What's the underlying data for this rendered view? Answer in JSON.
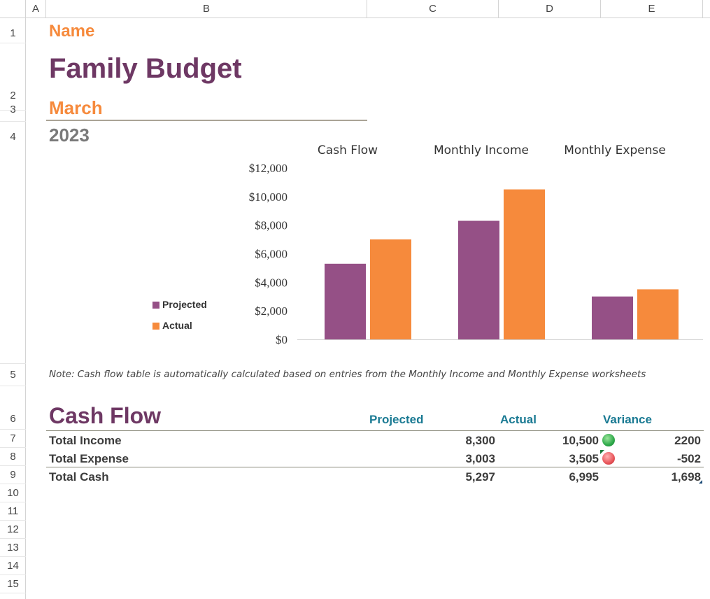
{
  "sheet": {
    "columns": [
      "A",
      "B",
      "C",
      "D",
      "E"
    ],
    "rows": [
      "1",
      "2",
      "3",
      "4",
      "5",
      "6",
      "7",
      "8",
      "9",
      "10",
      "11",
      "12",
      "13",
      "14",
      "15"
    ]
  },
  "header": {
    "name": "Name",
    "title": "Family Budget",
    "month": "March",
    "year": "2023"
  },
  "chart_data": {
    "type": "bar",
    "categories": [
      "Cash Flow",
      "Monthly Income",
      "Monthly Expense"
    ],
    "series": [
      {
        "name": "Projected",
        "values": [
          5297,
          8300,
          3003
        ],
        "color": "#955086"
      },
      {
        "name": "Actual",
        "values": [
          6995,
          10500,
          3505
        ],
        "color": "#f68a3c"
      }
    ],
    "yticks": [
      "$0",
      "$2,000",
      "$4,000",
      "$6,000",
      "$8,000",
      "$10,000",
      "$12,000"
    ],
    "ylim": [
      0,
      12000
    ],
    "legend_placement": "left",
    "grid": false
  },
  "note": "Note: Cash flow table is automatically calculated based on entries from the Monthly Income and Monthly Expense worksheets",
  "cash_flow": {
    "title": "Cash Flow",
    "headers": [
      "Projected",
      "Actual",
      "Variance"
    ],
    "rows": [
      {
        "label": "Total Income",
        "projected": "8,300",
        "actual": "10,500",
        "variance": "2200",
        "status": "green"
      },
      {
        "label": "Total Expense",
        "projected": "3,003",
        "actual": "3,505",
        "variance": "-502",
        "status": "red"
      },
      {
        "label": "Total Cash",
        "projected": "5,297",
        "actual": "6,995",
        "variance": "1,698",
        "status": ""
      }
    ]
  }
}
